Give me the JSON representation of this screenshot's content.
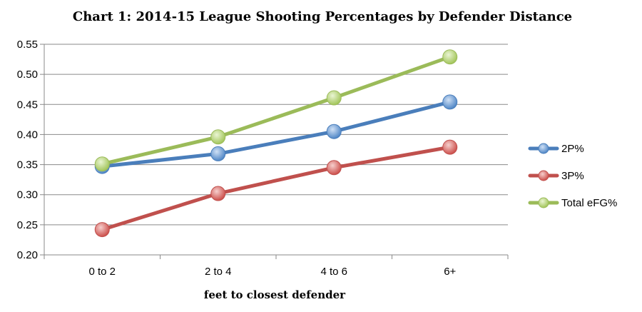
{
  "chart_data": {
    "type": "line",
    "title": "Chart 1: 2014-15 League Shooting Percentages by Defender Distance",
    "xlabel": "feet to closest defender",
    "ylabel": "",
    "categories": [
      "0 to 2",
      "2 to 4",
      "4 to 6",
      "6+"
    ],
    "ylim": [
      0.2,
      0.55
    ],
    "yticks": [
      "0.20",
      "0.25",
      "0.30",
      "0.35",
      "0.40",
      "0.45",
      "0.50",
      "0.55"
    ],
    "grid": true,
    "legend_position": "right",
    "series": [
      {
        "name": "2P%",
        "color": "#4a7ebb",
        "marker_color": "#5b9bd5",
        "values": [
          0.347,
          0.368,
          0.405,
          0.454
        ]
      },
      {
        "name": "3P%",
        "color": "#c0504d",
        "marker_color": "#e07b78",
        "values": [
          0.242,
          0.302,
          0.345,
          0.379
        ]
      },
      {
        "name": "Total eFG%",
        "color": "#9bbb59",
        "marker_color": "#b8d774",
        "values": [
          0.351,
          0.396,
          0.461,
          0.529
        ]
      }
    ]
  }
}
